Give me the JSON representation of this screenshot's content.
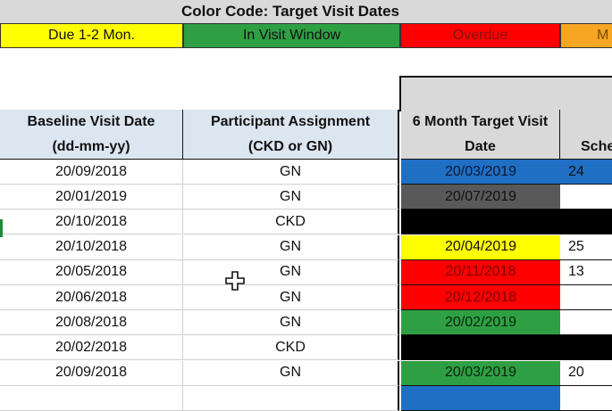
{
  "title": "Color Code: Target Visit Dates",
  "legend": [
    {
      "label": "Due 1-2 Mon.",
      "bg": "#ffff00",
      "fg": "#111111"
    },
    {
      "label": "In Visit Window",
      "bg": "#2ea043",
      "fg": "#111111"
    },
    {
      "label": "Overdue",
      "bg": "#ff0000",
      "fg": "#8a1010"
    },
    {
      "label": "M",
      "bg": "#f6a623",
      "fg": "#7a4a00"
    }
  ],
  "headers": {
    "baseline_line1": "Baseline Visit Date",
    "baseline_line2": "(dd-mm-yy)",
    "assignment_line1": "Participant Assignment",
    "assignment_line2": "(CKD or GN)",
    "target_line1": "6 Month Target Visit",
    "target_line2": "Date",
    "sched_partial": "Sche"
  },
  "rows": [
    {
      "baseline": "20/09/2018",
      "assignment": "GN",
      "target": "20/03/2019",
      "target_bg": "#1f6fc5",
      "target_fg": "#0b1a33",
      "sched": "24",
      "sched_bg": "#1f6fc5"
    },
    {
      "baseline": "20/01/2019",
      "assignment": "GN",
      "target": "20/07/2019",
      "target_bg": "#595959",
      "target_fg": "#111111",
      "sched": "",
      "sched_bg": "#ffffff"
    },
    {
      "baseline": "20/10/2018",
      "assignment": "CKD",
      "target": "",
      "target_bg": "#000000",
      "target_fg": "#000000",
      "sched": "",
      "sched_bg": "#000000"
    },
    {
      "baseline": "20/10/2018",
      "assignment": "GN",
      "target": "20/04/2019",
      "target_bg": "#ffff00",
      "target_fg": "#111111",
      "sched": "25",
      "sched_bg": "#ffffff"
    },
    {
      "baseline": "20/05/2018",
      "assignment": "GN",
      "target": "20/11/2018",
      "target_bg": "#ff0000",
      "target_fg": "#7a0000",
      "sched": "13",
      "sched_bg": "#ffffff"
    },
    {
      "baseline": "20/06/2018",
      "assignment": "GN",
      "target": "20/12/2018",
      "target_bg": "#ff0000",
      "target_fg": "#7a0000",
      "sched": "",
      "sched_bg": "#ffffff"
    },
    {
      "baseline": "20/08/2018",
      "assignment": "GN",
      "target": "20/02/2019",
      "target_bg": "#2ea043",
      "target_fg": "#0b2410",
      "sched": "",
      "sched_bg": "#ffffff"
    },
    {
      "baseline": "20/02/2018",
      "assignment": "CKD",
      "target": "",
      "target_bg": "#000000",
      "target_fg": "#000000",
      "sched": "",
      "sched_bg": "#000000"
    },
    {
      "baseline": "20/09/2018",
      "assignment": "GN",
      "target": "20/03/2019",
      "target_bg": "#2ea043",
      "target_fg": "#0b2410",
      "sched": "20",
      "sched_bg": "#ffffff"
    },
    {
      "baseline": "",
      "assignment": "",
      "target": "",
      "target_bg": "#1f6fc5",
      "target_fg": "#111111",
      "sched": "",
      "sched_bg": "#ffffff"
    }
  ]
}
